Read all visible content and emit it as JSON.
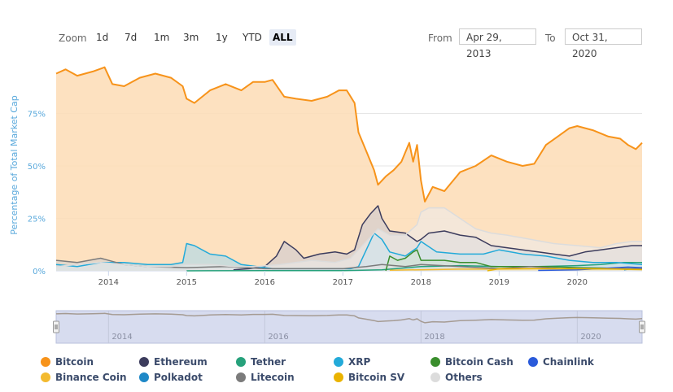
{
  "toolbar": {
    "zoom_label": "Zoom",
    "buttons": [
      "1d",
      "7d",
      "1m",
      "3m",
      "1y",
      "YTD",
      "ALL"
    ],
    "active": "ALL",
    "from_label": "From",
    "from_value": "Apr 29, 2013",
    "to_label": "To",
    "to_value": "Oct 31, 2020"
  },
  "chart_data": {
    "type": "area",
    "title": "",
    "xlabel": "",
    "ylabel": "Percentage of Total Market Cap",
    "x_ticks": [
      "2014",
      "2015",
      "2016",
      "2017",
      "2018",
      "2019",
      "2020"
    ],
    "y_ticks": [
      "0%",
      "25%",
      "50%",
      "75%"
    ],
    "xlim": [
      2013.33,
      2020.83
    ],
    "ylim": [
      0,
      100
    ],
    "grid": true,
    "legend_position": "bottom",
    "series": [
      {
        "name": "Bitcoin",
        "color": "#f7931a",
        "fill": "#fddcb5",
        "x": [
          2013.33,
          2013.45,
          2013.6,
          2013.8,
          2013.95,
          2014.05,
          2014.2,
          2014.4,
          2014.6,
          2014.8,
          2014.95,
          2015.0,
          2015.1,
          2015.3,
          2015.5,
          2015.7,
          2015.85,
          2016.0,
          2016.1,
          2016.25,
          2016.4,
          2016.6,
          2016.8,
          2016.95,
          2017.05,
          2017.15,
          2017.2,
          2017.3,
          2017.4,
          2017.45,
          2017.55,
          2017.65,
          2017.75,
          2017.85,
          2017.9,
          2017.95,
          2018.0,
          2018.05,
          2018.15,
          2018.3,
          2018.5,
          2018.7,
          2018.9,
          2019.1,
          2019.3,
          2019.45,
          2019.6,
          2019.75,
          2019.9,
          2020.0,
          2020.2,
          2020.4,
          2020.55,
          2020.65,
          2020.75,
          2020.83
        ],
        "values": [
          94,
          96,
          93,
          95,
          97,
          89,
          88,
          92,
          94,
          92,
          88,
          82,
          80,
          86,
          89,
          86,
          90,
          90,
          91,
          83,
          82,
          81,
          83,
          86,
          86,
          80,
          66,
          57,
          48,
          41,
          45,
          48,
          52,
          61,
          52,
          60,
          43,
          33,
          40,
          38,
          47,
          50,
          55,
          52,
          50,
          51,
          60,
          64,
          68,
          69,
          67,
          64,
          63,
          60,
          58,
          61
        ]
      },
      {
        "name": "Ethereum",
        "color": "#3c3c5d",
        "fill": "#c8c8d2",
        "x": [
          2015.6,
          2015.8,
          2016.0,
          2016.15,
          2016.25,
          2016.4,
          2016.5,
          2016.7,
          2016.9,
          2017.05,
          2017.15,
          2017.25,
          2017.35,
          2017.45,
          2017.5,
          2017.6,
          2017.8,
          2017.95,
          2018.0,
          2018.1,
          2018.3,
          2018.5,
          2018.7,
          2018.9,
          2019.1,
          2019.3,
          2019.5,
          2019.7,
          2019.9,
          2020.1,
          2020.3,
          2020.5,
          2020.7,
          2020.83
        ],
        "values": [
          0.5,
          1,
          2,
          7,
          14,
          10,
          6,
          8,
          9,
          8,
          10,
          22,
          27,
          31,
          25,
          19,
          18,
          14,
          15,
          18,
          19,
          17,
          16,
          12,
          11,
          10,
          9,
          8,
          7,
          9,
          10,
          11,
          12,
          12
        ]
      },
      {
        "name": "Tether",
        "color": "#26a17b",
        "fill": "#9fd5c4",
        "x": [
          2015.0,
          2016.0,
          2017.0,
          2017.5,
          2018.0,
          2018.5,
          2019.0,
          2019.5,
          2020.0,
          2020.3,
          2020.6,
          2020.83
        ],
        "values": [
          0,
          0.1,
          0.1,
          0.5,
          2,
          2.5,
          2,
          2,
          2.5,
          3,
          4,
          4
        ]
      },
      {
        "name": "XRP",
        "color": "#23aad9",
        "fill": "#a3d9ee",
        "x": [
          2013.33,
          2013.6,
          2013.9,
          2014.2,
          2014.5,
          2014.8,
          2014.95,
          2015.0,
          2015.1,
          2015.3,
          2015.5,
          2015.7,
          2015.9,
          2016.1,
          2016.5,
          2016.9,
          2017.1,
          2017.2,
          2017.3,
          2017.4,
          2017.5,
          2017.6,
          2017.8,
          2017.95,
          2018.0,
          2018.2,
          2018.5,
          2018.8,
          2019.0,
          2019.3,
          2019.6,
          2019.9,
          2020.2,
          2020.5,
          2020.83
        ],
        "values": [
          3,
          2,
          4,
          4,
          3,
          3,
          4,
          13,
          12,
          8,
          7,
          3,
          2,
          1,
          1,
          1,
          1,
          2,
          10,
          18,
          15,
          9,
          7,
          11,
          14,
          9,
          8,
          8,
          10,
          8,
          7,
          5,
          4,
          4,
          3
        ]
      },
      {
        "name": "Bitcoin Cash",
        "color": "#3a8e2d",
        "fill": "#b3d7ae",
        "x": [
          2017.55,
          2017.6,
          2017.7,
          2017.8,
          2017.9,
          2017.95,
          2018.0,
          2018.1,
          2018.3,
          2018.5,
          2018.7,
          2018.9,
          2019.2,
          2019.6,
          2020.0,
          2020.5,
          2020.83
        ],
        "values": [
          0,
          7,
          5,
          6,
          9,
          10,
          5,
          5,
          5,
          4,
          4,
          2,
          2,
          2,
          1.5,
          1.2,
          1
        ]
      },
      {
        "name": "Chainlink",
        "color": "#2a5ada",
        "fill": "#aabdee",
        "x": [
          2019.5,
          2020.0,
          2020.5,
          2020.65,
          2020.83
        ],
        "values": [
          0.2,
          0.5,
          1.5,
          1.8,
          1.5
        ]
      },
      {
        "name": "Binance Coin",
        "color": "#f3ba2f",
        "fill": "#fbe3a6",
        "x": [
          2017.6,
          2018.0,
          2018.5,
          2019.0,
          2019.5,
          2020.0,
          2020.5,
          2020.83
        ],
        "values": [
          0.3,
          0.5,
          0.8,
          0.8,
          1,
          1,
          1,
          1
        ]
      },
      {
        "name": "Polkadot",
        "color": "#1e88c7",
        "fill": "#a3cdea",
        "x": [
          2020.6,
          2020.7,
          2020.83
        ],
        "values": [
          0.5,
          1,
          1
        ]
      },
      {
        "name": "Litecoin",
        "color": "#7b7b7b",
        "fill": "#cfcfcf",
        "x": [
          2013.33,
          2013.6,
          2013.9,
          2014.2,
          2014.5,
          2015.0,
          2015.5,
          2016.0,
          2016.5,
          2017.0,
          2017.3,
          2017.5,
          2017.8,
          2018.0,
          2018.5,
          2019.0,
          2019.4,
          2019.8,
          2020.2,
          2020.83
        ],
        "values": [
          5,
          4,
          6,
          3,
          2,
          1.5,
          2,
          1,
          1,
          1,
          2,
          3,
          2,
          3,
          2,
          1,
          2,
          1,
          1,
          1
        ]
      },
      {
        "name": "Bitcoin SV",
        "color": "#eab300",
        "fill": "#f7df8f",
        "x": [
          2018.85,
          2019.0,
          2019.3,
          2019.6,
          2020.0,
          2020.5,
          2020.83
        ],
        "values": [
          0,
          1,
          1,
          1,
          1,
          0.8,
          0.6
        ]
      },
      {
        "name": "Others",
        "color": "#dcdcdc",
        "fill": "#ededed",
        "x": [
          2013.33,
          2013.6,
          2013.9,
          2014.2,
          2014.5,
          2014.8,
          2015.0,
          2015.3,
          2015.6,
          2015.9,
          2016.2,
          2016.6,
          2016.9,
          2017.1,
          2017.3,
          2017.45,
          2017.6,
          2017.8,
          2017.95,
          2018.0,
          2018.1,
          2018.3,
          2018.5,
          2018.7,
          2018.9,
          2019.1,
          2019.4,
          2019.7,
          2020.0,
          2020.3,
          2020.5,
          2020.7,
          2020.83
        ],
        "values": [
          2,
          3,
          4,
          3,
          2,
          2,
          3,
          3,
          2,
          2,
          3,
          5,
          4,
          6,
          14,
          20,
          17,
          17,
          22,
          28,
          30,
          30,
          25,
          20,
          18,
          17,
          15,
          13,
          12,
          11,
          13,
          14,
          14
        ]
      }
    ],
    "navigator": {
      "x_ticks": [
        "2014",
        "2016",
        "2018",
        "2020"
      ]
    }
  }
}
